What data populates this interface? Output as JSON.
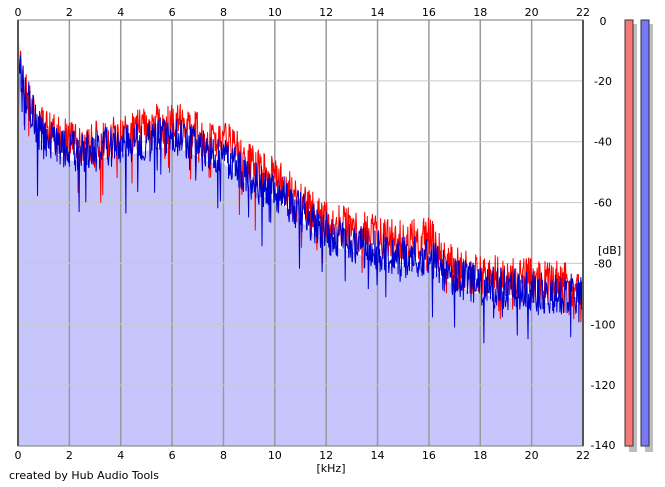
{
  "app": {
    "credit": "created by Hub Audio Tools"
  },
  "chart_data": {
    "type": "line",
    "xlabel": "[kHz]",
    "ylabel": "[dB]",
    "xlim": [
      0,
      22
    ],
    "ylim": [
      -140,
      0
    ],
    "x_ticks": [
      "0",
      "2",
      "4",
      "6",
      "8",
      "10",
      "12",
      "14",
      "16",
      "18",
      "20",
      "22"
    ],
    "y_ticks": [
      "0",
      "-20",
      "-40",
      "-60",
      "-80",
      "-100",
      "-120",
      "-140"
    ],
    "grid": true,
    "fill_color": "#c6c6fd",
    "series": [
      {
        "color": "#ff0000",
        "x": [
          0,
          0.25,
          0.5,
          0.75,
          1,
          1.5,
          2,
          2.5,
          3,
          3.5,
          4,
          4.5,
          5,
          5.5,
          6,
          6.5,
          7,
          7.5,
          8,
          8.5,
          9,
          9.5,
          10,
          10.5,
          11,
          11.5,
          12,
          12.5,
          13,
          13.5,
          14,
          14.5,
          15,
          15.5,
          16,
          16.5,
          17,
          17.5,
          18,
          18.5,
          19,
          19.5,
          20,
          20.5,
          21,
          21.5,
          22
        ],
        "values": [
          -12,
          -20,
          -27,
          -32,
          -36,
          -38,
          -40,
          -41,
          -40,
          -39,
          -38,
          -37,
          -35,
          -34,
          -34,
          -35,
          -37,
          -40,
          -39,
          -43,
          -47,
          -50,
          -52,
          -56,
          -60,
          -63,
          -66,
          -67,
          -68,
          -70,
          -71,
          -72,
          -72,
          -72,
          -71,
          -78,
          -81,
          -83,
          -84,
          -84,
          -84,
          -85,
          -85,
          -86,
          -86,
          -87,
          -88
        ]
      },
      {
        "color": "#0000cc",
        "x": [
          0,
          0.25,
          0.5,
          0.75,
          1,
          1.5,
          2,
          2.5,
          3,
          3.5,
          4,
          4.5,
          5,
          5.5,
          6,
          6.5,
          7,
          7.5,
          8,
          8.5,
          9,
          9.5,
          10,
          10.5,
          11,
          11.5,
          12,
          12.5,
          13,
          13.5,
          14,
          14.5,
          15,
          15.5,
          16,
          16.5,
          17,
          17.5,
          18,
          18.5,
          19,
          19.5,
          20,
          20.5,
          21,
          21.5,
          22
        ],
        "values": [
          -14,
          -22,
          -29,
          -35,
          -39,
          -41,
          -43,
          -44,
          -43,
          -42,
          -41,
          -41,
          -40,
          -39,
          -39,
          -40,
          -42,
          -44,
          -44,
          -48,
          -52,
          -55,
          -56,
          -59,
          -63,
          -67,
          -70,
          -72,
          -73,
          -75,
          -76,
          -78,
          -78,
          -78,
          -77,
          -82,
          -84,
          -86,
          -87,
          -88,
          -88,
          -89,
          -89,
          -90,
          -90,
          -90,
          -91
        ]
      }
    ],
    "level_meters": [
      {
        "color": "#f87878",
        "level": 1.0
      },
      {
        "color": "#7878f8",
        "level": 1.0
      }
    ]
  }
}
